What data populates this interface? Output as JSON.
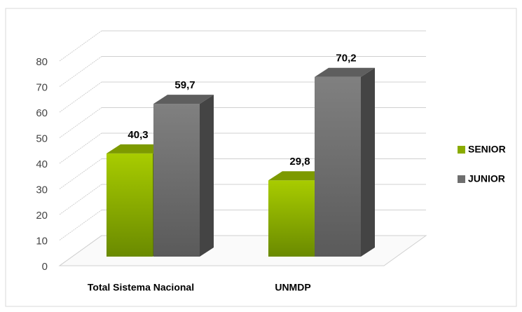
{
  "chart_data": {
    "type": "bar3d",
    "categories": [
      "Total Sistema Nacional",
      "UNMDP"
    ],
    "series": [
      {
        "name": "SENIOR",
        "color": "#8aab00",
        "values": [
          40.3,
          29.8
        ],
        "value_labels": [
          "40,3",
          "29,8"
        ]
      },
      {
        "name": "JUNIOR",
        "color": "#6e6e6e",
        "values": [
          59.7,
          70.2
        ],
        "value_labels": [
          "59,7",
          "70,2"
        ]
      }
    ],
    "ylim": [
      0,
      80
    ],
    "yticks": [
      0,
      10,
      20,
      30,
      40,
      50,
      60,
      70,
      80
    ],
    "grid": true,
    "legend": "right"
  }
}
